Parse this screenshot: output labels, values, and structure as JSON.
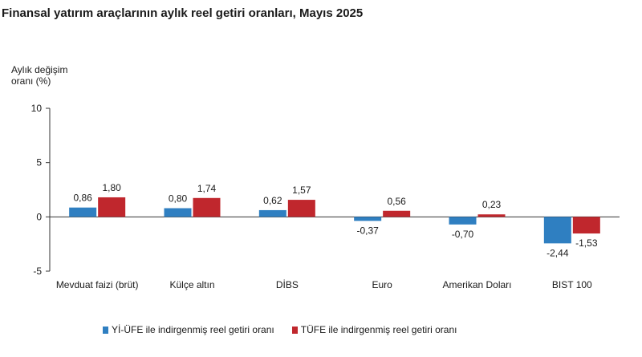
{
  "chart_data": {
    "type": "bar",
    "title": "Finansal yatırım araçlarının aylık reel getiri oranları, Mayıs 2025",
    "ylabel_line1": "Aylık değişim",
    "ylabel_line2": "oranı (%)",
    "ylim": [
      -5,
      10
    ],
    "yticks": [
      10,
      5,
      0,
      -5
    ],
    "grid": false,
    "legend_position": "bottom",
    "categories": [
      "Mevduat faizi (brüt)",
      "Külçe altın",
      "DİBS",
      "Euro",
      "Amerikan Doları",
      "BIST 100"
    ],
    "series": [
      {
        "name": "Yİ-ÜFE ile indirgenmiş reel getiri oranı",
        "color": "#2f7fc1",
        "values": [
          0.86,
          0.8,
          0.62,
          -0.37,
          -0.7,
          -2.44
        ],
        "labels": [
          "0,86",
          "0,80",
          "0,62",
          "-0,37",
          "-0,70",
          "-2,44"
        ]
      },
      {
        "name": "TÜFE ile indirgenmiş reel getiri oranı",
        "color": "#c0272d",
        "values": [
          1.8,
          1.74,
          1.57,
          0.56,
          0.23,
          -1.53
        ],
        "labels": [
          "1,80",
          "1,74",
          "1,57",
          "0,56",
          "0,23",
          "-1,53"
        ]
      }
    ]
  }
}
